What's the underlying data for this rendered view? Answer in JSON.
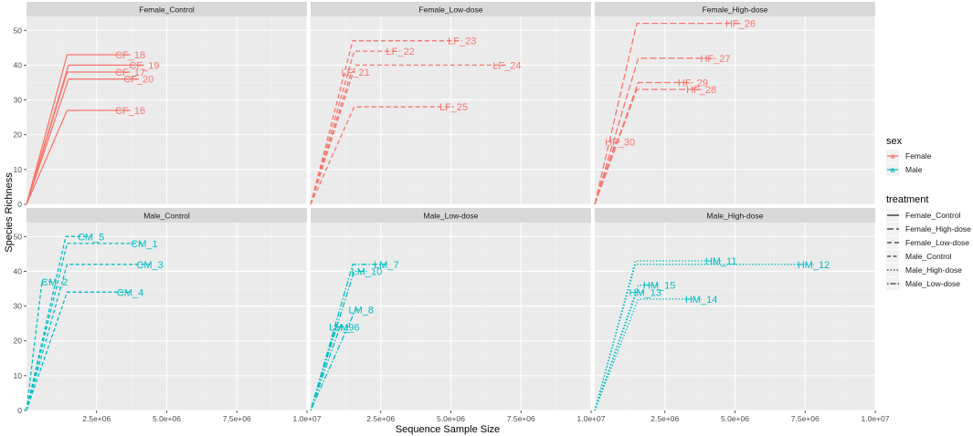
{
  "colors": {
    "Female": "#F8766D",
    "Male": "#00BFC4",
    "panel_bg": "#EBEBEB",
    "strip_bg": "#D9D9D9",
    "grid_major": "#FFFFFF",
    "grid_minor": "#F4F4F4",
    "text": "#4D4D4D"
  },
  "chart_data": {
    "type": "line",
    "title": "",
    "xlabel": "Sequence Sample Size",
    "ylabel": "Species Richness",
    "xlim": [
      0,
      10000000
    ],
    "ylim": [
      0,
      54
    ],
    "x_ticks": [
      {
        "value": 2500000,
        "label": "2.5e+06"
      },
      {
        "value": 5000000,
        "label": "5.0e+06"
      },
      {
        "value": 7500000,
        "label": "7.5e+06"
      },
      {
        "value": 10000000,
        "label": "1.0e+07"
      }
    ],
    "y_ticks": [
      0,
      10,
      20,
      30,
      40,
      50
    ],
    "grid": true,
    "legend_placement": "right",
    "legend": {
      "sex_title": "sex",
      "sex_items": [
        "Female",
        "Male"
      ],
      "treatment_title": "treatment",
      "treatment_items": [
        {
          "label": "Female_Control",
          "dash": "solid"
        },
        {
          "label": "Female_High-dose",
          "dash": "dash_long"
        },
        {
          "label": "Female_Low-dose",
          "dash": "dash_med"
        },
        {
          "label": "Male_Control",
          "dash": "dash_short"
        },
        {
          "label": "Male_High-dose",
          "dash": "dotted"
        },
        {
          "label": "Male_Low-dose",
          "dash": "dotdash"
        }
      ]
    },
    "panels": [
      {
        "strip": "Female_Control",
        "sex": "Female",
        "dash": "solid",
        "series": [
          {
            "name": "CF_18",
            "x": [
              0,
              1450000,
              3700000
            ],
            "y": [
              0,
              43,
              43
            ]
          },
          {
            "name": "CF_19",
            "x": [
              0,
              1500000,
              4200000
            ],
            "y": [
              0,
              40,
              40
            ]
          },
          {
            "name": "CF_17",
            "x": [
              0,
              1450000,
              3700000
            ],
            "y": [
              0,
              38,
              38
            ]
          },
          {
            "name": "CF_20",
            "x": [
              0,
              1500000,
              4000000
            ],
            "y": [
              0,
              36,
              36
            ]
          },
          {
            "name": "CF_16",
            "x": [
              0,
              1450000,
              3700000
            ],
            "y": [
              0,
              27,
              27
            ]
          }
        ]
      },
      {
        "strip": "Female_Low-dose",
        "sex": "Female",
        "dash": "dash_med",
        "series": [
          {
            "name": "LF_23",
            "x": [
              0,
              1500000,
              5400000
            ],
            "y": [
              0,
              47,
              47
            ]
          },
          {
            "name": "LF_22",
            "x": [
              0,
              1550000,
              3200000
            ],
            "y": [
              0,
              44,
              44
            ]
          },
          {
            "name": "LF_24",
            "x": [
              0,
              1600000,
              7000000
            ],
            "y": [
              0,
              40,
              40
            ]
          },
          {
            "name": "LF_21",
            "x": [
              0,
              1450000,
              1600000
            ],
            "y": [
              0,
              38,
              38
            ]
          },
          {
            "name": "LF_25",
            "x": [
              0,
              1550000,
              5100000
            ],
            "y": [
              0,
              28,
              28
            ]
          }
        ]
      },
      {
        "strip": "Female_High-dose",
        "sex": "Female",
        "dash": "dash_long",
        "series": [
          {
            "name": "HF_26",
            "x": [
              0,
              1500000,
              5200000
            ],
            "y": [
              0,
              52,
              52
            ]
          },
          {
            "name": "HF_27",
            "x": [
              0,
              1550000,
              4300000
            ],
            "y": [
              0,
              42,
              42
            ]
          },
          {
            "name": "HF_29",
            "x": [
              0,
              1550000,
              3500000
            ],
            "y": [
              0,
              35,
              35
            ]
          },
          {
            "name": "HF_28",
            "x": [
              0,
              1500000,
              3800000
            ],
            "y": [
              0,
              33,
              33
            ]
          },
          {
            "name": "HF_30",
            "x": [
              0,
              750000,
              900000
            ],
            "y": [
              0,
              18,
              18
            ]
          }
        ]
      },
      {
        "strip": "Male_Control",
        "sex": "Male",
        "dash": "dash_short",
        "series": [
          {
            "name": "CM_5",
            "x": [
              0,
              1400000,
              2300000
            ],
            "y": [
              0,
              50,
              50
            ]
          },
          {
            "name": "CM_1",
            "x": [
              0,
              1450000,
              4200000
            ],
            "y": [
              0,
              48,
              48
            ]
          },
          {
            "name": "CM_3",
            "x": [
              0,
              1450000,
              4400000
            ],
            "y": [
              0,
              42,
              42
            ]
          },
          {
            "name": "CM_2",
            "x": [
              0,
              550000,
              1000000
            ],
            "y": [
              0,
              37,
              37
            ]
          },
          {
            "name": "CM_4",
            "x": [
              0,
              1450000,
              3700000
            ],
            "y": [
              0,
              34,
              34
            ]
          }
        ]
      },
      {
        "strip": "Male_Low-dose",
        "sex": "Male",
        "dash": "dotdash",
        "series": [
          {
            "name": "LM_7",
            "x": [
              0,
              1500000,
              2700000
            ],
            "y": [
              0,
              42,
              42
            ]
          },
          {
            "name": "LM_10",
            "x": [
              0,
              1550000,
              2000000
            ],
            "y": [
              0,
              40,
              40
            ]
          },
          {
            "name": "LM_8",
            "x": [
              0,
              1600000,
              1800000
            ],
            "y": [
              0,
              29,
              29
            ]
          },
          {
            "name": "LM_9",
            "x": [
              0,
              900000,
              1100000
            ],
            "y": [
              0,
              24,
              24
            ]
          },
          {
            "name": "LM_6",
            "x": [
              0,
              1050000,
              1300000
            ],
            "y": [
              0,
              24,
              24
            ]
          }
        ]
      },
      {
        "strip": "Male_High-dose",
        "sex": "Male",
        "dash": "dotted",
        "series": [
          {
            "name": "HM_11",
            "x": [
              0,
              1450000,
              4500000
            ],
            "y": [
              0,
              43,
              43
            ]
          },
          {
            "name": "HM_12",
            "x": [
              0,
              1450000,
              7800000
            ],
            "y": [
              0,
              42,
              42
            ]
          },
          {
            "name": "HM_15",
            "x": [
              0,
              1550000,
              2300000
            ],
            "y": [
              0,
              36,
              36
            ]
          },
          {
            "name": "HM_13",
            "x": [
              0,
              1500000,
              1800000
            ],
            "y": [
              0,
              34,
              34
            ]
          },
          {
            "name": "HM_14",
            "x": [
              0,
              1550000,
              3800000
            ],
            "y": [
              0,
              32,
              32
            ]
          }
        ]
      }
    ]
  }
}
